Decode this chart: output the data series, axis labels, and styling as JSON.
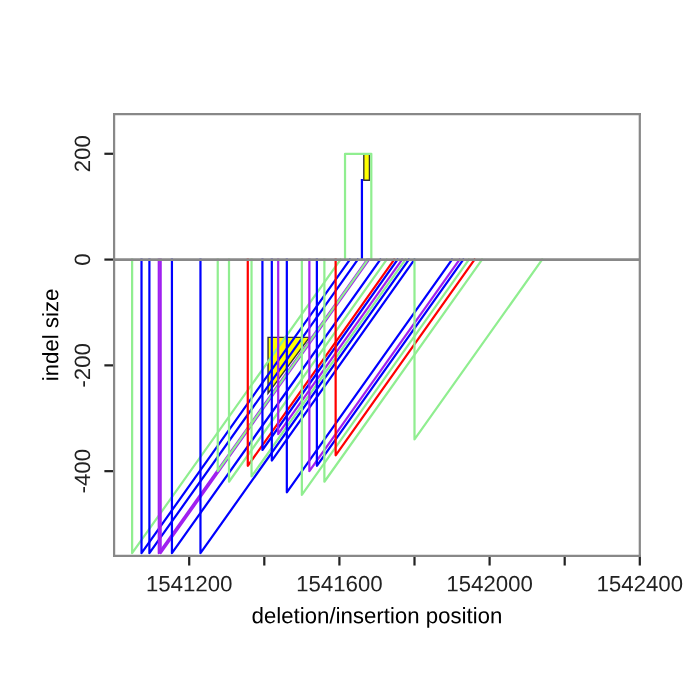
{
  "chart_data": {
    "type": "line",
    "xlabel": "deletion/insertion position",
    "ylabel": "indel size",
    "xlim": [
      1541000,
      1542400
    ],
    "ylim": [
      -560,
      275
    ],
    "xticks": [
      1541200,
      {
        "value": 1541400,
        "label": null
      },
      1541600,
      {
        "value": 1541800,
        "label": null
      },
      1542000,
      {
        "value": 1542200,
        "label": null
      },
      1542400
    ],
    "yticks": [
      -400,
      -200,
      0,
      200
    ],
    "grid": false,
    "legend": false,
    "ref_lines": [
      {
        "axis": "y",
        "value": 0,
        "color": "#888888"
      }
    ],
    "series": [
      {
        "color": "#90ee90",
        "x": [
          1541048,
          1541048,
          1541603
        ],
        "values": [
          0,
          -555,
          0
        ]
      },
      {
        "color": "#0000ff",
        "x": [
          1541073,
          1541073,
          1541628
        ],
        "values": [
          0,
          -555,
          0
        ]
      },
      {
        "color": "#0000ff",
        "x": [
          1541094,
          1541094,
          1541649
        ],
        "values": [
          0,
          -555,
          0
        ]
      },
      {
        "color": "#a020f0",
        "x": [
          1541119,
          1541119,
          1541674
        ],
        "values": [
          0,
          -555,
          0
        ]
      },
      {
        "color": "#a020f0",
        "x": [
          1541124,
          1541124,
          1541679
        ],
        "values": [
          0,
          -555,
          0
        ]
      },
      {
        "color": "#0000ff",
        "x": [
          1541154,
          1541154,
          1541709
        ],
        "values": [
          0,
          -555,
          0
        ]
      },
      {
        "color": "#0000ff",
        "x": [
          1541230,
          1541230,
          1541785
        ],
        "values": [
          0,
          -555,
          0
        ]
      },
      {
        "color": "#90ee90",
        "x": [
          1541276,
          1541276,
          1541676
        ],
        "values": [
          0,
          -400,
          0
        ]
      },
      {
        "color": "#90ee90",
        "x": [
          1541306,
          1541306,
          1541726
        ],
        "values": [
          0,
          -420,
          0
        ]
      },
      {
        "color": "#ff0000",
        "x": [
          1541356,
          1541356,
          1541746
        ],
        "values": [
          0,
          -390,
          0
        ]
      },
      {
        "color": "#90ee90",
        "x": [
          1541366,
          1541366,
          1541776
        ],
        "values": [
          0,
          -410,
          0
        ]
      },
      {
        "color": "#0000ff",
        "x": [
          1541395,
          1541395,
          1541755
        ],
        "values": [
          0,
          -360,
          0
        ]
      },
      {
        "color": "#0000ff",
        "x": [
          1541420,
          1541420,
          1541800
        ],
        "values": [
          0,
          -380,
          0
        ]
      },
      {
        "color": "#a020f0",
        "x": [
          1541437,
          1541437,
          1541767
        ],
        "values": [
          0,
          -330,
          0
        ]
      },
      {
        "color": "#0000ff",
        "x": [
          1541460,
          1541460,
          1541900
        ],
        "values": [
          0,
          -440,
          0
        ]
      },
      {
        "color": "#90ee90",
        "x": [
          1541500,
          1541500,
          1541945
        ],
        "values": [
          0,
          -445,
          0
        ]
      },
      {
        "color": "#a020f0",
        "x": [
          1541520,
          1541520,
          1541920
        ],
        "values": [
          0,
          -400,
          0
        ]
      },
      {
        "color": "#0000ff",
        "x": [
          1541540,
          1541540,
          1541930
        ],
        "values": [
          0,
          -390,
          0
        ]
      },
      {
        "color": "#90ee90",
        "x": [
          1541560,
          1541560,
          1541980
        ],
        "values": [
          0,
          -420,
          0
        ]
      },
      {
        "color": "#ff0000",
        "x": [
          1541590,
          1541590,
          1541960
        ],
        "values": [
          0,
          -370,
          0
        ]
      },
      {
        "color": "#90ee90",
        "x": [
          1541800,
          1541800,
          1542140
        ],
        "values": [
          0,
          -340,
          0
        ]
      },
      {
        "color": "#90ee90",
        "x": [
          1541615,
          1541615,
          1541685,
          1541685
        ],
        "values": [
          0,
          200,
          200,
          0
        ]
      },
      {
        "color": "#0000ff",
        "x": [
          1541660,
          1541660
        ],
        "values": [
          0,
          150
        ]
      },
      {
        "type": "area",
        "color": "#ffff00",
        "x": [
          1541665,
          1541665,
          1541680,
          1541680
        ],
        "values": [
          150,
          200,
          200,
          150
        ]
      },
      {
        "type": "area",
        "color": "#ffff00",
        "x": [
          1541410,
          1541520,
          1541410
        ],
        "values": [
          -147,
          -147,
          -253
        ]
      }
    ]
  }
}
